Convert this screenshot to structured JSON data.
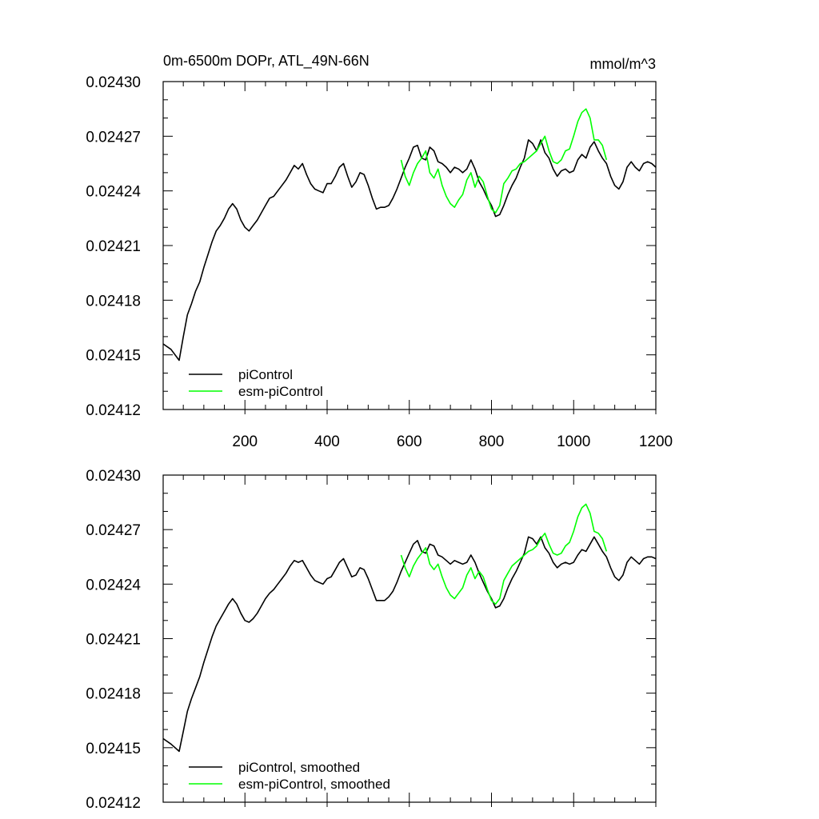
{
  "chart_data": [
    {
      "type": "line",
      "title": "0m-6500m DOPr, ATL_49N-66N",
      "units": "mmol/m^3",
      "xlabel": "",
      "ylabel": "",
      "xlim": [
        1,
        1200
      ],
      "ylim": [
        0.02412,
        0.0243
      ],
      "xticks": [
        200,
        400,
        600,
        800,
        1000,
        1200
      ],
      "xtick_labels": [
        "200",
        "400",
        "600",
        "800",
        "1000",
        "1200"
      ],
      "yticks": [
        0.02412,
        0.02415,
        0.02418,
        0.02421,
        0.02424,
        0.02427,
        0.0243
      ],
      "ytick_labels": [
        "0.02412",
        "0.02415",
        "0.02418",
        "0.02421",
        "0.02424",
        "0.02427",
        "0.02430"
      ],
      "legend_position": "bottom-left",
      "series": [
        {
          "name": "piControl",
          "color": "#000000",
          "x": [
            1,
            20,
            40,
            50,
            60,
            70,
            80,
            90,
            100,
            110,
            120,
            130,
            140,
            150,
            160,
            170,
            180,
            190,
            200,
            210,
            220,
            230,
            240,
            250,
            260,
            270,
            280,
            290,
            300,
            310,
            320,
            330,
            340,
            350,
            360,
            370,
            380,
            390,
            400,
            410,
            420,
            430,
            440,
            450,
            460,
            470,
            480,
            490,
            500,
            510,
            520,
            530,
            540,
            550,
            560,
            570,
            580,
            590,
            600,
            610,
            620,
            630,
            640,
            650,
            660,
            670,
            680,
            690,
            700,
            710,
            720,
            730,
            740,
            750,
            760,
            770,
            780,
            790,
            800,
            810,
            820,
            830,
            840,
            850,
            860,
            870,
            880,
            890,
            900,
            910,
            920,
            930,
            940,
            950,
            960,
            970,
            980,
            990,
            1000,
            1010,
            1020,
            1030,
            1040,
            1050,
            1060,
            1070,
            1080,
            1090,
            1100,
            1110,
            1120,
            1130,
            1140,
            1150,
            1160,
            1170,
            1180,
            1190,
            1200
          ],
          "y": [
            0.024156,
            0.024153,
            0.024147,
            0.02416,
            0.024172,
            0.024178,
            0.024185,
            0.02419,
            0.024198,
            0.024205,
            0.024212,
            0.024218,
            0.024221,
            0.024225,
            0.02423,
            0.024233,
            0.02423,
            0.024224,
            0.02422,
            0.024218,
            0.024221,
            0.024224,
            0.024228,
            0.024232,
            0.024236,
            0.024237,
            0.02424,
            0.024243,
            0.024246,
            0.02425,
            0.024254,
            0.024252,
            0.024255,
            0.024249,
            0.024244,
            0.024241,
            0.02424,
            0.024239,
            0.024244,
            0.024244,
            0.024248,
            0.024253,
            0.024255,
            0.024248,
            0.024242,
            0.024245,
            0.02425,
            0.024249,
            0.024243,
            0.024236,
            0.02423,
            0.024231,
            0.024231,
            0.024232,
            0.024236,
            0.024241,
            0.024247,
            0.024253,
            0.024258,
            0.024264,
            0.024265,
            0.024258,
            0.024257,
            0.024264,
            0.024262,
            0.024256,
            0.024255,
            0.024253,
            0.02425,
            0.024253,
            0.024252,
            0.02425,
            0.024252,
            0.024257,
            0.024252,
            0.024245,
            0.024241,
            0.024236,
            0.024232,
            0.024226,
            0.024227,
            0.024232,
            0.024238,
            0.024243,
            0.024247,
            0.024253,
            0.024258,
            0.024268,
            0.024266,
            0.024262,
            0.024268,
            0.024261,
            0.024258,
            0.024252,
            0.024248,
            0.024251,
            0.024252,
            0.02425,
            0.024251,
            0.024257,
            0.02426,
            0.024258,
            0.024264,
            0.024267,
            0.024262,
            0.024258,
            0.024255,
            0.024248,
            0.024243,
            0.024241,
            0.024245,
            0.024253,
            0.024256,
            0.024253,
            0.024251,
            0.024255,
            0.024256,
            0.024255,
            0.024253
          ]
        },
        {
          "name": "esm-piControl",
          "color": "#00ff00",
          "x": [
            580,
            590,
            600,
            610,
            620,
            630,
            640,
            650,
            660,
            670,
            680,
            690,
            700,
            710,
            720,
            730,
            740,
            750,
            760,
            770,
            780,
            790,
            800,
            810,
            820,
            830,
            840,
            850,
            860,
            870,
            880,
            890,
            900,
            910,
            920,
            930,
            940,
            950,
            960,
            970,
            980,
            990,
            1000,
            1010,
            1020,
            1030,
            1040,
            1050,
            1060,
            1070,
            1080
          ],
          "y": [
            0.024257,
            0.024248,
            0.024243,
            0.02425,
            0.024255,
            0.024258,
            0.024262,
            0.02425,
            0.024247,
            0.024252,
            0.024243,
            0.024237,
            0.024233,
            0.024231,
            0.024235,
            0.024238,
            0.024246,
            0.02425,
            0.024242,
            0.024248,
            0.024245,
            0.024237,
            0.02423,
            0.024228,
            0.024232,
            0.024244,
            0.024247,
            0.024251,
            0.024252,
            0.024255,
            0.024256,
            0.024258,
            0.02426,
            0.024262,
            0.024266,
            0.02427,
            0.024262,
            0.024256,
            0.024255,
            0.024257,
            0.024262,
            0.024263,
            0.02427,
            0.024278,
            0.024283,
            0.024285,
            0.02428,
            0.024268,
            0.024268,
            0.024265,
            0.024257
          ]
        }
      ],
      "legend": [
        "piControl",
        "esm-piControl"
      ]
    },
    {
      "type": "line",
      "title": "",
      "xlabel": "",
      "ylabel": "",
      "xlim": [
        1,
        1200
      ],
      "ylim": [
        0.02412,
        0.0243
      ],
      "yticks": [
        0.02412,
        0.02415,
        0.02418,
        0.02421,
        0.02424,
        0.02427,
        0.0243
      ],
      "ytick_labels": [
        "0.02412",
        "0.02415",
        "0.02418",
        "0.02421",
        "0.02424",
        "0.02427",
        "0.02430"
      ],
      "legend_position": "bottom-left",
      "series": [
        {
          "name": "piControl, smoothed",
          "color": "#000000",
          "x": [
            1,
            20,
            40,
            50,
            60,
            70,
            80,
            90,
            100,
            110,
            120,
            130,
            140,
            150,
            160,
            170,
            180,
            190,
            200,
            210,
            220,
            230,
            240,
            250,
            260,
            270,
            280,
            290,
            300,
            310,
            320,
            330,
            340,
            350,
            360,
            370,
            380,
            390,
            400,
            410,
            420,
            430,
            440,
            450,
            460,
            470,
            480,
            490,
            500,
            510,
            520,
            530,
            540,
            550,
            560,
            570,
            580,
            590,
            600,
            610,
            620,
            630,
            640,
            650,
            660,
            670,
            680,
            690,
            700,
            710,
            720,
            730,
            740,
            750,
            760,
            770,
            780,
            790,
            800,
            810,
            820,
            830,
            840,
            850,
            860,
            870,
            880,
            890,
            900,
            910,
            920,
            930,
            940,
            950,
            960,
            970,
            980,
            990,
            1000,
            1010,
            1020,
            1030,
            1040,
            1050,
            1060,
            1070,
            1080,
            1090,
            1100,
            1110,
            1120,
            1130,
            1140,
            1150,
            1160,
            1170,
            1180,
            1190,
            1200
          ],
          "y": [
            0.024155,
            0.024152,
            0.024148,
            0.024159,
            0.02417,
            0.024177,
            0.024183,
            0.024189,
            0.024197,
            0.024204,
            0.024211,
            0.024217,
            0.024221,
            0.024225,
            0.024229,
            0.024232,
            0.024229,
            0.024224,
            0.02422,
            0.024219,
            0.024221,
            0.024224,
            0.024228,
            0.024232,
            0.024235,
            0.024237,
            0.02424,
            0.024243,
            0.024246,
            0.02425,
            0.024253,
            0.024252,
            0.024253,
            0.024249,
            0.024245,
            0.024242,
            0.024241,
            0.02424,
            0.024243,
            0.024244,
            0.024248,
            0.024252,
            0.024254,
            0.024249,
            0.024244,
            0.024245,
            0.024249,
            0.024248,
            0.024243,
            0.024237,
            0.024231,
            0.024231,
            0.024231,
            0.024233,
            0.024236,
            0.024241,
            0.024247,
            0.024252,
            0.024257,
            0.024262,
            0.024264,
            0.024258,
            0.024257,
            0.024262,
            0.024261,
            0.024256,
            0.024255,
            0.024253,
            0.024251,
            0.024253,
            0.024252,
            0.024251,
            0.024252,
            0.024256,
            0.024252,
            0.024246,
            0.024241,
            0.024236,
            0.024232,
            0.024227,
            0.024228,
            0.024232,
            0.024238,
            0.024243,
            0.024247,
            0.024252,
            0.024257,
            0.024266,
            0.024265,
            0.024262,
            0.024266,
            0.02426,
            0.024257,
            0.024252,
            0.024249,
            0.024251,
            0.024252,
            0.024251,
            0.024252,
            0.024256,
            0.024259,
            0.024258,
            0.024262,
            0.024266,
            0.024262,
            0.024258,
            0.024255,
            0.024249,
            0.024244,
            0.024242,
            0.024245,
            0.024252,
            0.024255,
            0.024253,
            0.024251,
            0.024254,
            0.024255,
            0.024255,
            0.024254
          ]
        },
        {
          "name": "esm-piControl, smoothed",
          "color": "#00ff00",
          "x": [
            580,
            590,
            600,
            610,
            620,
            630,
            640,
            650,
            660,
            670,
            680,
            690,
            700,
            710,
            720,
            730,
            740,
            750,
            760,
            770,
            780,
            790,
            800,
            810,
            820,
            830,
            840,
            850,
            860,
            870,
            880,
            890,
            900,
            910,
            920,
            930,
            940,
            950,
            960,
            970,
            980,
            990,
            1000,
            1010,
            1020,
            1030,
            1040,
            1050,
            1060,
            1070,
            1080
          ],
          "y": [
            0.024256,
            0.024249,
            0.024244,
            0.02425,
            0.024254,
            0.024257,
            0.02426,
            0.024251,
            0.024248,
            0.024251,
            0.024244,
            0.024238,
            0.024234,
            0.024232,
            0.024235,
            0.024238,
            0.024245,
            0.024249,
            0.024243,
            0.024247,
            0.024244,
            0.024237,
            0.024231,
            0.024229,
            0.024232,
            0.024242,
            0.024246,
            0.02425,
            0.024252,
            0.024254,
            0.024256,
            0.024258,
            0.024259,
            0.024261,
            0.024265,
            0.024268,
            0.024262,
            0.024257,
            0.024256,
            0.024257,
            0.024261,
            0.024263,
            0.024269,
            0.024277,
            0.024282,
            0.024284,
            0.024279,
            0.024269,
            0.024268,
            0.024265,
            0.024258
          ]
        }
      ],
      "legend": [
        "piControl, smoothed",
        "esm-piControl, smoothed"
      ]
    }
  ]
}
